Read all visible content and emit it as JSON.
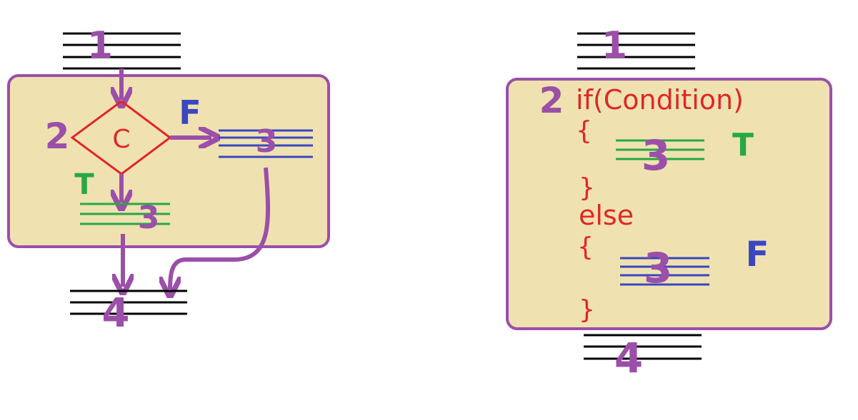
{
  "colors": {
    "box_fill": "#efe2b0",
    "box_stroke": "#9b4fa8",
    "step_number": "#9b4fa8",
    "condition": "#e0262a",
    "true_branch": "#27a844",
    "false_branch": "#3a46c2",
    "statement_lines": "#000000"
  },
  "flowchart": {
    "step1": "1",
    "step2": "2",
    "condition": "C",
    "false_label": "F",
    "true_label": "T",
    "false_step": "3",
    "true_step": "3",
    "step4": "4"
  },
  "code": {
    "step1": "1",
    "step2": "2",
    "if_line": "if(Condition)",
    "open_brace_1": "{",
    "true_step": "3",
    "true_label": "T",
    "close_brace_1": "}",
    "else_line": "else",
    "open_brace_2": "{",
    "false_step": "3",
    "false_label": "F",
    "close_brace_2": "}",
    "step4": "4"
  }
}
